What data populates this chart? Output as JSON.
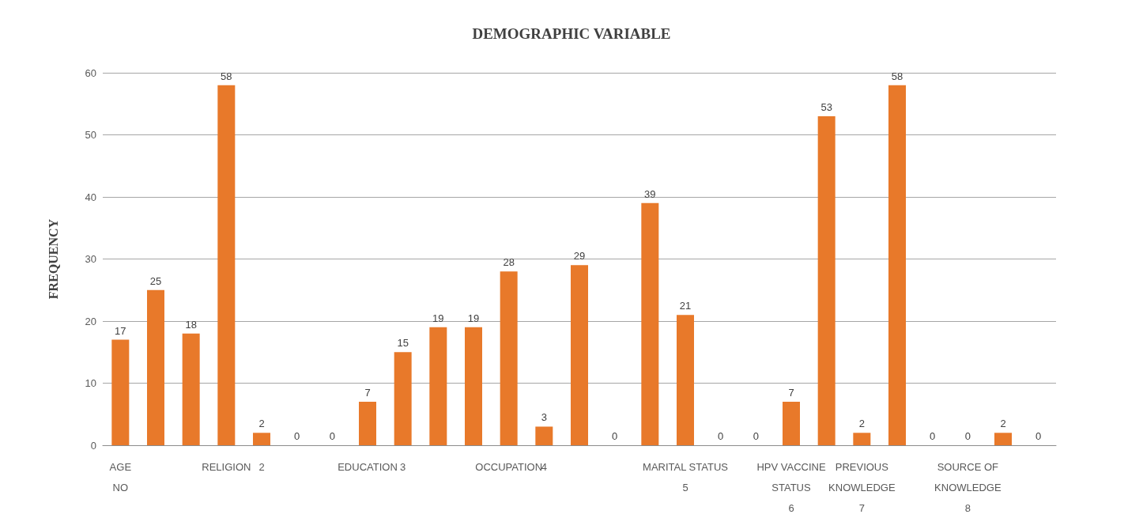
{
  "chart_data": {
    "type": "bar",
    "title": "DEMOGRAPHIC VARIABLE",
    "ylabel": "FREQUENCY",
    "categories": [
      "AGE\nNO",
      null,
      null,
      "RELIGION",
      "2",
      null,
      null,
      "EDUCATION",
      "3",
      null,
      null,
      "OCCUPATION",
      "4",
      null,
      null,
      null,
      "MARITAL STATUS\n5",
      null,
      null,
      "HPV VACCINE\nSTATUS\n6",
      null,
      "PREVIOUS\nKNOWLEDGE\n7",
      null,
      null,
      "SOURCE OF\nKNOWLEDGE\n8",
      null,
      null
    ],
    "values": [
      17,
      25,
      18,
      58,
      2,
      0,
      0,
      7,
      15,
      19,
      19,
      28,
      3,
      29,
      0,
      39,
      21,
      0,
      0,
      7,
      53,
      2,
      58,
      0,
      0,
      2,
      0
    ],
    "color": "#e8792a",
    "ylim": [
      0,
      60
    ],
    "yticks": [
      0,
      10,
      20,
      30,
      40,
      50,
      60
    ],
    "grid": "y",
    "data_labels": true
  }
}
